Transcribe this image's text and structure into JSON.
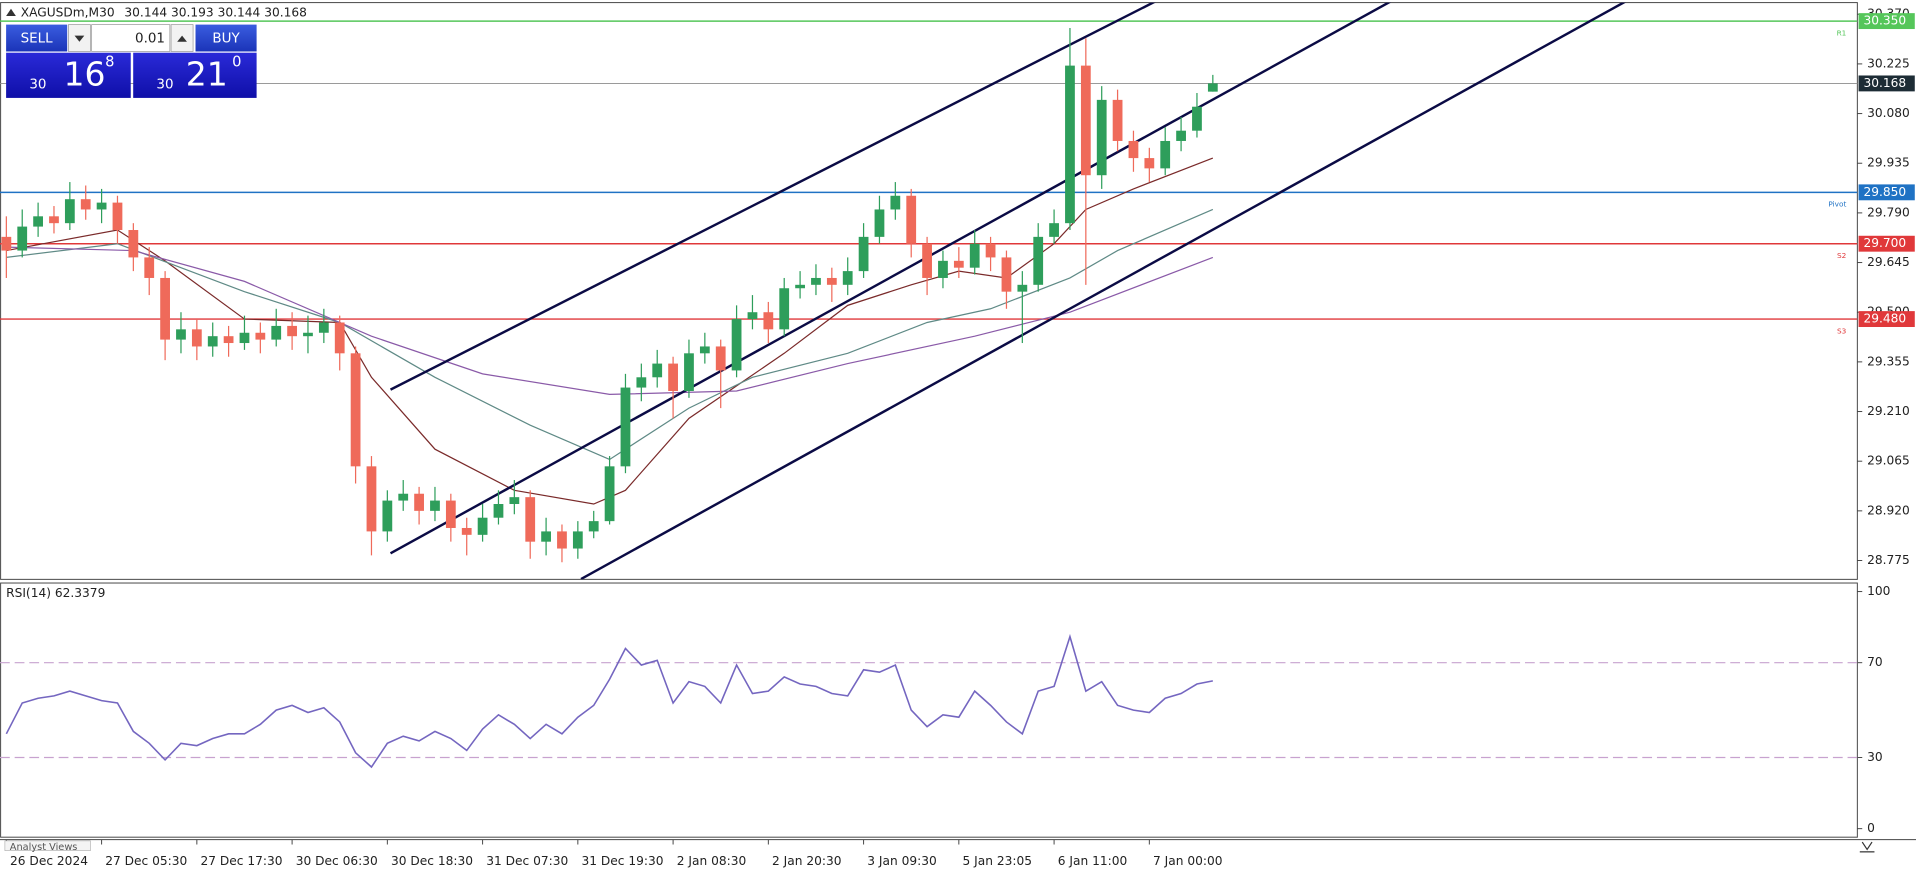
{
  "header": {
    "symbol": "XAGUSDm,M30"
  },
  "trade_panel": {
    "sell": "SELL",
    "buy": "BUY",
    "lot": "0.01",
    "bid": {
      "head": "30",
      "main": "16",
      "tail": "8"
    },
    "ask": {
      "head": "30",
      "main": "21",
      "tail": "0"
    }
  },
  "tab": "Analyst Views",
  "chart_data": {
    "type": "candlestick",
    "categories": [
      "26 Dec 2024",
      null,
      null,
      null,
      null,
      null,
      "27 Dec 05:30",
      null,
      null,
      null,
      null,
      null,
      "27 Dec 17:30",
      null,
      null,
      null,
      null,
      null,
      "30 Dec 06:30",
      null,
      null,
      null,
      null,
      null,
      "30 Dec 18:30",
      null,
      null,
      null,
      null,
      null,
      "31 Dec 07:30",
      null,
      null,
      null,
      null,
      null,
      "31 Dec 19:30",
      null,
      null,
      null,
      null,
      null,
      "2 Jan 08:30",
      null,
      null,
      null,
      null,
      null,
      "2 Jan 20:30",
      null,
      null,
      null,
      null,
      null,
      "3 Jan 09:30",
      null,
      null,
      null,
      null,
      null,
      "5 Jan 23:05",
      null,
      null,
      null,
      null,
      null,
      "6 Jan 11:00",
      null,
      null,
      null,
      null,
      null,
      "7 Jan 00:00",
      null,
      null,
      null,
      null
    ],
    "open": [
      29.72,
      29.68,
      29.75,
      29.78,
      29.76,
      29.83,
      29.8,
      29.82,
      29.74,
      29.66,
      29.6,
      29.42,
      29.45,
      29.4,
      29.43,
      29.41,
      29.44,
      29.42,
      29.46,
      29.43,
      29.44,
      29.47,
      29.38,
      29.05,
      28.86,
      28.95,
      28.97,
      28.92,
      28.95,
      28.87,
      28.85,
      28.9,
      28.94,
      28.96,
      28.83,
      28.86,
      28.81,
      28.86,
      28.89,
      29.05,
      29.28,
      29.31,
      29.35,
      29.27,
      29.38,
      29.4,
      29.33,
      29.48,
      29.5,
      29.45,
      29.57,
      29.58,
      29.6,
      29.58,
      29.62,
      29.72,
      29.8,
      29.84,
      29.7,
      29.6,
      29.65,
      29.63,
      29.7,
      29.66,
      29.56,
      29.58,
      29.72,
      29.76,
      30.22,
      29.9,
      30.12,
      30.0,
      29.95,
      29.92,
      30.0,
      30.03,
      30.144
    ],
    "high": [
      29.78,
      29.8,
      29.82,
      29.81,
      29.88,
      29.87,
      29.86,
      29.84,
      29.76,
      29.69,
      29.62,
      29.5,
      29.48,
      29.47,
      29.46,
      29.49,
      29.47,
      29.51,
      29.5,
      29.49,
      29.51,
      29.49,
      29.4,
      29.08,
      28.98,
      29.01,
      28.99,
      28.99,
      28.97,
      28.9,
      28.94,
      28.98,
      29.01,
      28.98,
      28.9,
      28.88,
      28.89,
      28.92,
      29.08,
      29.32,
      29.35,
      29.39,
      29.37,
      29.42,
      29.44,
      29.42,
      29.52,
      29.55,
      29.53,
      29.6,
      29.62,
      29.64,
      29.63,
      29.66,
      29.76,
      29.84,
      29.88,
      29.86,
      29.72,
      29.68,
      29.69,
      29.74,
      29.72,
      29.68,
      29.62,
      29.76,
      29.8,
      30.33,
      30.3,
      30.16,
      30.15,
      30.03,
      29.98,
      30.04,
      30.07,
      30.14,
      30.193
    ],
    "low": [
      29.6,
      29.66,
      29.72,
      29.73,
      29.74,
      29.77,
      29.76,
      29.7,
      29.62,
      29.55,
      29.36,
      29.38,
      29.36,
      29.37,
      29.37,
      29.39,
      29.38,
      29.4,
      29.39,
      29.38,
      29.41,
      29.33,
      29.0,
      28.79,
      28.83,
      28.92,
      28.88,
      28.89,
      28.83,
      28.79,
      28.83,
      28.88,
      28.91,
      28.78,
      28.79,
      28.77,
      28.78,
      28.84,
      28.88,
      29.03,
      29.24,
      29.28,
      29.19,
      29.25,
      29.35,
      29.22,
      29.31,
      29.45,
      29.41,
      29.43,
      29.54,
      29.55,
      29.53,
      29.55,
      29.6,
      29.7,
      29.77,
      29.66,
      29.55,
      29.57,
      29.6,
      29.61,
      29.62,
      29.51,
      29.41,
      29.56,
      29.7,
      29.74,
      29.58,
      29.86,
      29.97,
      29.91,
      29.88,
      29.9,
      29.97,
      30.01,
      30.144
    ],
    "close": [
      29.68,
      29.75,
      29.78,
      29.76,
      29.83,
      29.8,
      29.82,
      29.74,
      29.66,
      29.6,
      29.42,
      29.45,
      29.4,
      29.43,
      29.41,
      29.44,
      29.42,
      29.46,
      29.43,
      29.44,
      29.47,
      29.38,
      29.05,
      28.86,
      28.95,
      28.97,
      28.92,
      28.95,
      28.87,
      28.85,
      28.9,
      28.94,
      28.96,
      28.83,
      28.86,
      28.81,
      28.86,
      28.89,
      29.05,
      29.28,
      29.31,
      29.35,
      29.27,
      29.38,
      29.4,
      29.33,
      29.48,
      29.5,
      29.45,
      29.57,
      29.58,
      29.6,
      29.58,
      29.62,
      29.72,
      29.8,
      29.84,
      29.7,
      29.6,
      29.65,
      29.63,
      29.7,
      29.66,
      29.56,
      29.58,
      29.72,
      29.76,
      30.22,
      29.9,
      30.12,
      30.0,
      29.95,
      29.92,
      30.0,
      30.03,
      30.1,
      30.168
    ],
    "up_color": "#2e9e5b",
    "down_color": "#ef6a5a",
    "xlim": [
      -0.4,
      116.6
    ],
    "ylim": [
      28.72,
      30.404
    ],
    "yticks": [
      {
        "value": 28.775,
        "label": "28.775"
      },
      {
        "value": 28.92,
        "label": "28.920"
      },
      {
        "value": 29.065,
        "label": "29.065"
      },
      {
        "value": 29.21,
        "label": "29.210"
      },
      {
        "value": 29.355,
        "label": "29.355"
      },
      {
        "value": 29.5,
        "label": "29.500"
      },
      {
        "value": 29.645,
        "label": "29.645"
      },
      {
        "value": 29.79,
        "label": "29.790"
      },
      {
        "value": 29.935,
        "label": "29.935"
      },
      {
        "value": 30.08,
        "label": "30.080"
      },
      {
        "value": 30.225,
        "label": "30.225"
      },
      {
        "value": 30.37,
        "label": "30.370"
      }
    ],
    "moving_averages": [
      {
        "color": "#7a2a2a",
        "x": [
          0,
          7,
          10,
          15,
          21,
          23,
          27,
          32,
          37,
          39,
          43,
          49,
          53,
          57,
          60,
          63,
          66,
          68,
          71,
          76
        ],
        "values": [
          29.68,
          29.74,
          29.65,
          29.48,
          29.47,
          29.31,
          29.1,
          28.98,
          28.94,
          28.98,
          29.19,
          29.38,
          29.52,
          29.58,
          29.62,
          29.6,
          29.7,
          29.8,
          29.86,
          29.95
        ]
      },
      {
        "color": "#5f8a86",
        "x": [
          0,
          7,
          15,
          21,
          27,
          33,
          38,
          43,
          47,
          53,
          58,
          62,
          67,
          70,
          76
        ],
        "values": [
          29.66,
          29.7,
          29.56,
          29.47,
          29.31,
          29.17,
          29.07,
          29.22,
          29.31,
          29.38,
          29.47,
          29.51,
          29.6,
          29.68,
          29.8
        ]
      },
      {
        "color": "#8a5aa8",
        "x": [
          0,
          8,
          15,
          23,
          30,
          38,
          46,
          53,
          61,
          67,
          76
        ],
        "values": [
          29.69,
          29.68,
          29.59,
          29.43,
          29.32,
          29.26,
          29.27,
          29.35,
          29.43,
          29.5,
          29.66
        ]
      }
    ],
    "trendlines": [
      {
        "color": "#0b0b45",
        "x": [
          24.2,
          72.7
        ],
        "values": [
          29.274,
          30.415
        ]
      },
      {
        "color": "#0b0b45",
        "x": [
          24.2,
          87.5
        ],
        "values": [
          28.796,
          30.415
        ]
      },
      {
        "color": "#0b0b45",
        "x": [
          36.2,
          102.3
        ],
        "values": [
          28.721,
          30.415
        ]
      }
    ],
    "levels": [
      {
        "name": "R1",
        "value": 30.35,
        "value_label": "30.350",
        "color": "#55c65a"
      },
      {
        "name": "Pivot",
        "value": 29.85,
        "value_label": "29.850",
        "color": "#1f72c4"
      },
      {
        "name": "S2",
        "value": 29.7,
        "value_label": "29.700",
        "color": "#e0383a"
      },
      {
        "name": "S3",
        "value": 29.48,
        "value_label": "29.480",
        "color": "#e0383a"
      }
    ],
    "current_line_color": "#8c8c8c",
    "current_box_color": "#1d2c35",
    "rsi": {
      "title": "RSI(14)",
      "color": "#7466c0",
      "values": [
        40,
        53,
        55,
        56,
        58,
        56,
        54,
        53,
        41,
        36,
        29,
        36,
        35,
        38,
        40,
        40,
        44,
        50,
        52,
        49,
        51,
        45,
        32,
        26,
        36,
        39,
        37,
        41,
        38,
        33,
        42,
        48,
        44,
        38,
        44,
        40,
        47,
        52,
        63,
        76,
        69,
        71,
        53,
        62,
        60,
        53,
        69,
        57,
        58,
        64,
        61,
        60,
        57,
        56,
        67,
        66,
        69,
        50,
        43,
        48,
        47,
        58,
        52,
        45,
        40,
        58,
        60,
        81,
        58,
        62,
        52,
        50,
        49,
        55,
        57,
        61,
        62.3379
      ],
      "ylim": [
        -3.6,
        103.6
      ],
      "yticks": [
        0,
        30,
        70,
        100
      ],
      "levels": [
        30,
        70
      ],
      "level_color": "#c8a2cf"
    }
  }
}
